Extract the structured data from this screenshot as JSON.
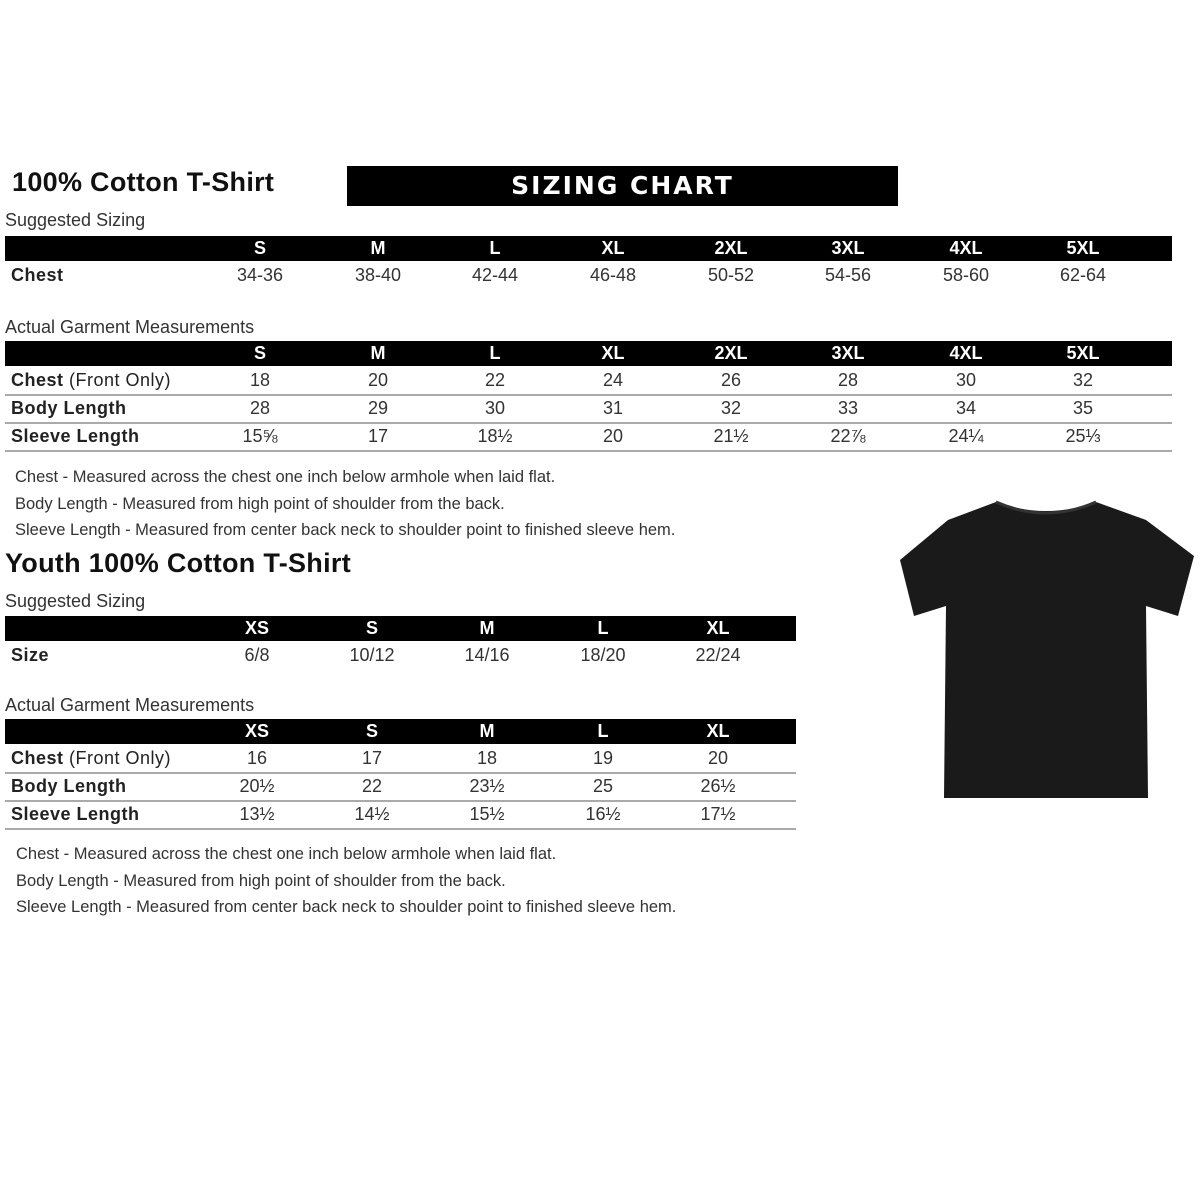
{
  "adult": {
    "title": "100% Cotton T-Shirt",
    "banner": "SIZING CHART",
    "suggested_label": "Suggested Sizing",
    "sizes": [
      "S",
      "M",
      "L",
      "XL",
      "2XL",
      "3XL",
      "4XL",
      "5XL"
    ],
    "suggested_rows": [
      {
        "label": "Chest",
        "values": [
          "34-36",
          "38-40",
          "42-44",
          "46-48",
          "50-52",
          "54-56",
          "58-60",
          "62-64"
        ]
      }
    ],
    "actual_label": "Actual Garment Measurements",
    "actual_rows": [
      {
        "label": "Chest",
        "label_suffix": "(Front Only)",
        "values": [
          "18",
          "20",
          "22",
          "24",
          "26",
          "28",
          "30",
          "32"
        ]
      },
      {
        "label": "Body Length",
        "label_suffix": "",
        "values": [
          "28",
          "29",
          "30",
          "31",
          "32",
          "33",
          "34",
          "35"
        ]
      },
      {
        "label": "Sleeve Length",
        "label_suffix": "",
        "values": [
          "15⅝",
          "17",
          "18½",
          "20",
          "21½",
          "22⅞",
          "24¼",
          "25⅓"
        ]
      }
    ],
    "notes": [
      "Chest - Measured across the chest one inch below armhole when laid flat.",
      "Body Length - Measured from high point of shoulder from the back.",
      "Sleeve Length - Measured from center back neck to shoulder point to finished sleeve hem."
    ]
  },
  "youth": {
    "title": "Youth 100% Cotton T-Shirt",
    "suggested_label": "Suggested Sizing",
    "sizes": [
      "XS",
      "S",
      "M",
      "L",
      "XL"
    ],
    "suggested_rows": [
      {
        "label": "Size",
        "values": [
          "6/8",
          "10/12",
          "14/16",
          "18/20",
          "22/24"
        ]
      }
    ],
    "actual_label": "Actual Garment Measurements",
    "actual_rows": [
      {
        "label": "Chest",
        "label_suffix": "(Front Only)",
        "values": [
          "16",
          "17",
          "18",
          "19",
          "20"
        ]
      },
      {
        "label": "Body Length",
        "label_suffix": "",
        "values": [
          "20½",
          "22",
          "23½",
          "25",
          "26½"
        ]
      },
      {
        "label": "Sleeve Length",
        "label_suffix": "",
        "values": [
          "13½",
          "14½",
          "15½",
          "16½",
          "17½"
        ]
      }
    ],
    "notes": [
      "Chest - Measured across the chest one inch below armhole when laid flat.",
      "Body Length - Measured from high point of shoulder from the back.",
      "Sleeve Length - Measured from center back neck to shoulder point to finished sleeve hem."
    ]
  },
  "image": {
    "icon": "black-tshirt-icon",
    "color": "#1a1a1a"
  }
}
